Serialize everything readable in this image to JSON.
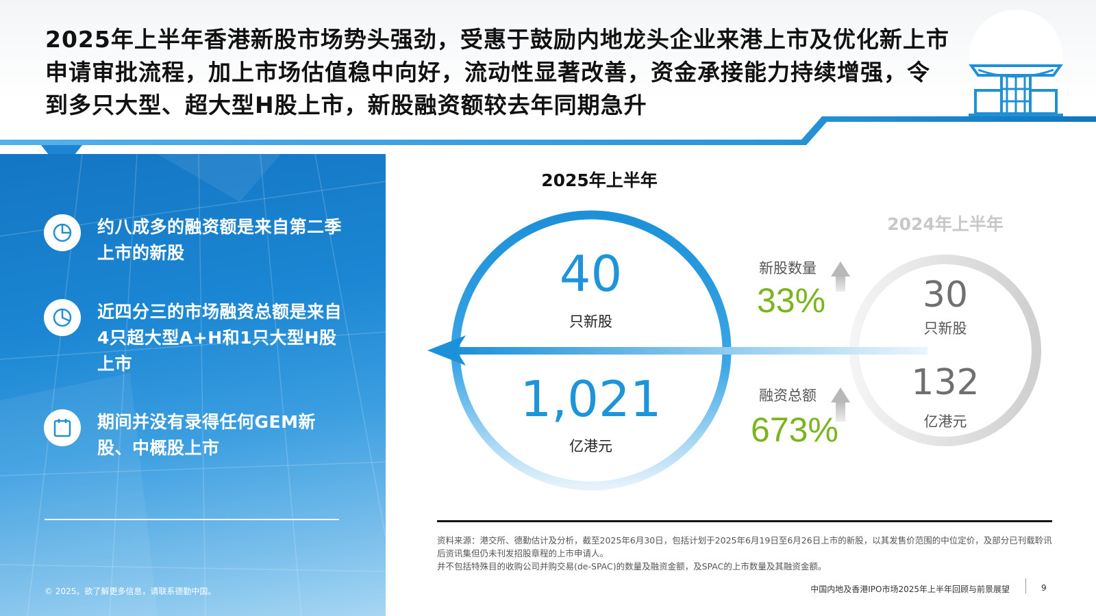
{
  "header": {
    "headline": "2025年上半年香港新股市场势头强劲，受惠于鼓励内地龙头企业来港上市及优化新上市申请审批流程，加上市场估值稳中向好，流动性显著改善，资金承接能力持续增强，令到多只大型、超大型H股上市，新股融资额较去年同期急升"
  },
  "left_panel": {
    "bullets": [
      {
        "icon": "pie-chart-icon",
        "text": "约八成多的融资额是来自第二季上市的新股"
      },
      {
        "icon": "pie-chart-icon",
        "text": "近四分三的市场融资总额是来自4只超大型A+H和1只大型H股上市"
      },
      {
        "icon": "calendar-icon",
        "text": "期间并没有录得任何GEM新股、中概股上市"
      }
    ],
    "copyright": "© 2025。欲了解更多信息，请联系德勤中国。"
  },
  "comparison": {
    "current": {
      "period": "2025年上半年",
      "ipo_count": "40",
      "ipo_count_unit": "只新股",
      "proceeds": "1,021",
      "proceeds_unit": "亿港元"
    },
    "previous": {
      "period": "2024年上半年",
      "ipo_count": "30",
      "ipo_count_unit": "只新股",
      "proceeds": "132",
      "proceeds_unit": "亿港元"
    },
    "changes": [
      {
        "label": "新股数量",
        "value": "33%",
        "direction": "up"
      },
      {
        "label": "融资总额",
        "value": "673%",
        "direction": "up"
      }
    ],
    "colors": {
      "accent_blue": "#1f95d9",
      "growth_green": "#7ab51d",
      "muted_gray": "#d4d4d4"
    }
  },
  "source": {
    "lines": [
      "资料来源：港交所、德勤估计及分析，截至2025年6月30日，包括计划于2025年6月19日至6月26日上市的新股，以其发售价范围的中位定价，及部分已刊载聆讯后资讯集但仍未刊发招股章程的上市申请人。",
      "并不包括特殊目的收购公司并购交易(de-SPAC)的数量及融资金额，及SPAC的上市数量及其融资金额。"
    ]
  },
  "footer": {
    "title": "中国内地及香港IPO市场2025年上半年回顾与前景展望",
    "page": "9"
  }
}
